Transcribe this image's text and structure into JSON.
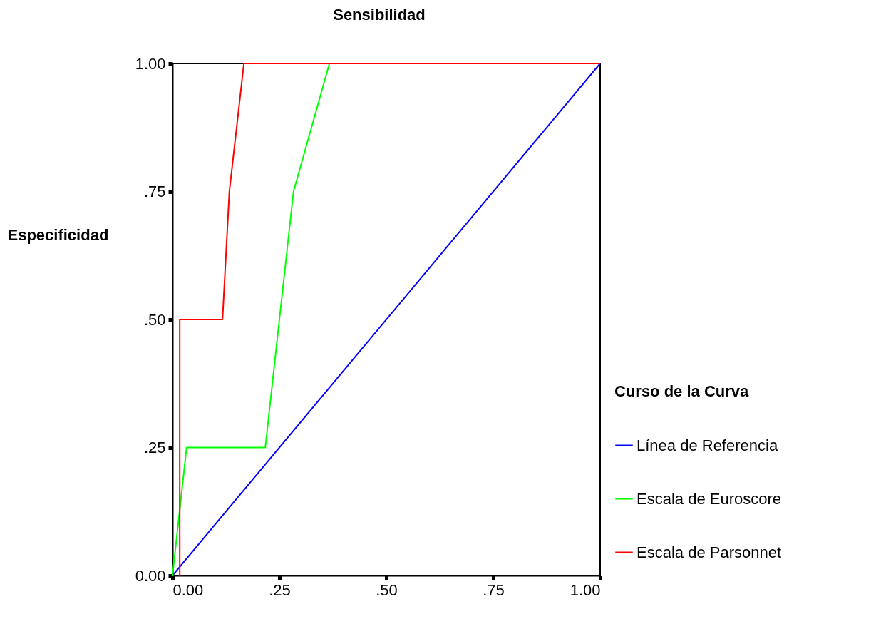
{
  "chart_data": {
    "type": "line",
    "title": "Sensibilidad",
    "ylabel": "Especificidad",
    "legend_title": "Curso de la Curva",
    "legend": "right",
    "grid": false,
    "marker": "none",
    "line_style": "solid",
    "xlim": [
      0,
      1
    ],
    "ylim": [
      0,
      1
    ],
    "xticks": [
      {
        "value": 0,
        "label": "0.00"
      },
      {
        "value": 0.25,
        "label": ".25"
      },
      {
        "value": 0.5,
        "label": ".50"
      },
      {
        "value": 0.75,
        "label": ".75"
      },
      {
        "value": 1,
        "label": "1.00"
      }
    ],
    "yticks": [
      {
        "value": 0,
        "label": "0.00"
      },
      {
        "value": 0.25,
        "label": ".25"
      },
      {
        "value": 0.5,
        "label": ".50"
      },
      {
        "value": 0.75,
        "label": ".75"
      },
      {
        "value": 1,
        "label": "1.00"
      }
    ],
    "series": [
      {
        "name": "Línea de Referencia",
        "color": "#0000ff",
        "x": [
          0,
          1
        ],
        "values": [
          0,
          1
        ]
      },
      {
        "name": "Escala de Euroscore",
        "color": "#00ff00",
        "x": [
          0,
          0.033,
          0.217,
          0.283,
          0.367,
          1
        ],
        "values": [
          0,
          0.25,
          0.25,
          0.75,
          1,
          1
        ]
      },
      {
        "name": "Escala de Parsonnet",
        "color": "#ff0000",
        "x": [
          0.017,
          0.017,
          0.117,
          0.133,
          0.167,
          1
        ],
        "values": [
          0,
          0.5,
          0.5,
          0.75,
          1,
          1
        ]
      }
    ]
  }
}
